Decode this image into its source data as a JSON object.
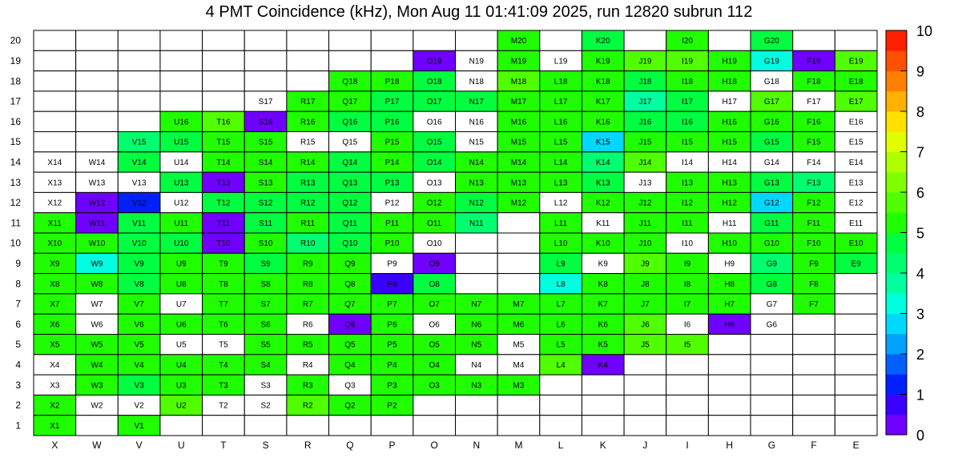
{
  "chart_data": {
    "type": "heatmap",
    "title": "4 PMT Coincidence (kHz), Mon Aug 11 01:41:09 2025, run 12820 subrun 112",
    "x_categories": [
      "X",
      "W",
      "V",
      "U",
      "T",
      "S",
      "R",
      "Q",
      "P",
      "O",
      "N",
      "M",
      "L",
      "K",
      "J",
      "I",
      "H",
      "G",
      "F",
      "E"
    ],
    "y_categories": [
      "1",
      "2",
      "3",
      "4",
      "5",
      "6",
      "7",
      "8",
      "9",
      "10",
      "11",
      "12",
      "13",
      "14",
      "15",
      "16",
      "17",
      "18",
      "19",
      "20"
    ],
    "zlim": [
      0,
      10
    ],
    "colorbar_ticks": [
      "0",
      "1",
      "2",
      "3",
      "4",
      "5",
      "6",
      "7",
      "8",
      "9",
      "10"
    ],
    "rows": [
      {
        "y": "20",
        "cells": [
          null,
          null,
          null,
          null,
          null,
          null,
          null,
          null,
          null,
          null,
          null,
          5.4,
          null,
          4.5,
          null,
          5.4,
          null,
          4.6,
          null,
          null
        ]
      },
      {
        "y": "19",
        "cells": [
          null,
          null,
          null,
          null,
          null,
          null,
          null,
          null,
          null,
          0.2,
          null,
          5.4,
          null,
          5.2,
          5.6,
          5.6,
          5.3,
          3.0,
          0.3,
          5.5
        ]
      },
      {
        "y": "18",
        "cells": [
          null,
          null,
          null,
          null,
          null,
          null,
          null,
          5.4,
          5.3,
          4.9,
          null,
          5.5,
          5.1,
          5.0,
          4.8,
          5.1,
          5.1,
          null,
          5.4,
          5.2
        ]
      },
      {
        "y": "17",
        "cells": [
          null,
          null,
          null,
          null,
          null,
          null,
          5.2,
          5.0,
          4.9,
          4.8,
          4.9,
          5.0,
          5.0,
          5.0,
          3.8,
          4.9,
          null,
          5.6,
          null,
          5.5
        ]
      },
      {
        "y": "16",
        "cells": [
          null,
          null,
          null,
          5.3,
          5.5,
          0.2,
          5.0,
          4.8,
          4.9,
          null,
          null,
          5.2,
          5.1,
          5.0,
          4.9,
          4.9,
          5.2,
          5.0,
          5.2,
          null
        ]
      },
      {
        "y": "15",
        "cells": [
          null,
          null,
          4.0,
          4.8,
          5.2,
          5.1,
          null,
          null,
          5.0,
          4.8,
          null,
          5.3,
          5.1,
          2.8,
          5.2,
          5.2,
          5.0,
          4.9,
          5.1,
          null
        ]
      },
      {
        "y": "14",
        "cells": [
          null,
          null,
          4.8,
          null,
          5.3,
          5.1,
          5.0,
          4.5,
          5.1,
          4.8,
          5.3,
          5.3,
          5.1,
          4.2,
          5.6,
          null,
          null,
          null,
          null,
          null
        ]
      },
      {
        "y": "13",
        "cells": [
          null,
          null,
          null,
          4.8,
          0.3,
          5.1,
          4.9,
          4.7,
          4.9,
          null,
          5.1,
          5.0,
          5.0,
          4.9,
          null,
          5.0,
          5.1,
          4.8,
          4.4,
          null
        ]
      },
      {
        "y": "12",
        "cells": [
          null,
          0.2,
          1.2,
          null,
          4.9,
          4.8,
          4.9,
          4.7,
          null,
          5.0,
          4.9,
          5.1,
          null,
          5.1,
          5.0,
          5.0,
          5.1,
          2.7,
          5.4,
          null
        ]
      },
      {
        "y": "11",
        "cells": [
          5.3,
          0.1,
          4.9,
          5.0,
          0.3,
          4.9,
          5.1,
          4.9,
          5.2,
          5.0,
          4.2,
          null,
          5.1,
          null,
          5.4,
          5.3,
          null,
          4.9,
          5.4,
          null
        ]
      },
      {
        "y": "10",
        "cells": [
          5.1,
          5.1,
          4.8,
          4.9,
          0.3,
          5.1,
          4.4,
          4.8,
          5.2,
          null,
          null,
          null,
          5.3,
          5.0,
          5.2,
          null,
          5.2,
          5.1,
          5.3,
          5.2
        ]
      },
      {
        "y": "9",
        "cells": [
          5.2,
          3.4,
          4.8,
          5.2,
          5.3,
          4.5,
          5.0,
          5.1,
          null,
          0.2,
          null,
          null,
          4.6,
          null,
          5.5,
          5.4,
          null,
          4.2,
          5.3,
          4.9
        ]
      },
      {
        "y": "8",
        "cells": [
          5.3,
          5.0,
          4.9,
          5.1,
          5.1,
          5.1,
          5.1,
          5.1,
          0.7,
          4.7,
          null,
          null,
          3.3,
          5.1,
          5.3,
          5.2,
          5.0,
          4.9,
          5.3,
          null
        ]
      },
      {
        "y": "7",
        "cells": [
          5.2,
          null,
          5.1,
          null,
          5.3,
          5.1,
          5.1,
          5.2,
          5.3,
          5.0,
          5.2,
          5.2,
          5.3,
          5.2,
          5.3,
          5.2,
          5.0,
          null,
          5.3,
          null
        ]
      },
      {
        "y": "6",
        "cells": [
          5.3,
          null,
          5.2,
          5.1,
          5.3,
          5.3,
          null,
          0.2,
          5.3,
          null,
          5.1,
          5.2,
          5.3,
          5.1,
          5.5,
          null,
          0.2,
          null,
          null,
          null
        ]
      },
      {
        "y": "5",
        "cells": [
          5.1,
          5.3,
          5.1,
          null,
          null,
          5.3,
          5.1,
          5.2,
          5.3,
          5.2,
          5.1,
          null,
          5.3,
          5.1,
          5.6,
          5.7,
          null,
          null,
          null,
          null
        ]
      },
      {
        "y": "4",
        "cells": [
          null,
          5.3,
          5.3,
          5.3,
          5.4,
          5.3,
          null,
          5.3,
          5.3,
          5.3,
          null,
          null,
          5.6,
          0.2,
          null,
          null,
          null,
          null,
          null,
          null
        ]
      },
      {
        "y": "3",
        "cells": [
          null,
          5.1,
          4.9,
          5.0,
          5.1,
          null,
          5.1,
          null,
          5.1,
          5.3,
          5.3,
          5.2,
          null,
          null,
          null,
          null,
          null,
          null,
          null,
          null
        ]
      },
      {
        "y": "2",
        "cells": [
          5.2,
          null,
          null,
          5.8,
          null,
          null,
          5.5,
          5.3,
          5.4,
          null,
          null,
          null,
          null,
          null,
          null,
          null,
          null,
          null,
          null,
          null
        ]
      },
      {
        "y": "1",
        "cells": [
          5.3,
          null,
          5.3,
          null,
          null,
          null,
          null,
          null,
          null,
          null,
          null,
          null,
          null,
          null,
          null,
          null,
          null,
          null,
          null,
          null
        ]
      }
    ],
    "labels": [
      {
        "y": "20",
        "cells": [
          "",
          "",
          "",
          "",
          "",
          "",
          "",
          "",
          "",
          "",
          "",
          "M20",
          "",
          "K20",
          "",
          "I20",
          "",
          "G20",
          "",
          ""
        ]
      },
      {
        "y": "19",
        "cells": [
          "",
          "",
          "",
          "",
          "",
          "",
          "",
          "",
          "",
          "O19",
          "N19",
          "M19",
          "L19",
          "K19",
          "J19",
          "I19",
          "H19",
          "G19",
          "F19",
          "E19"
        ]
      },
      {
        "y": "18",
        "cells": [
          "",
          "",
          "",
          "",
          "",
          "",
          "",
          "Q18",
          "P18",
          "O18",
          "N18",
          "M18",
          "L18",
          "K18",
          "J18",
          "I18",
          "H18",
          "G18",
          "F18",
          "E18"
        ]
      },
      {
        "y": "17",
        "cells": [
          "",
          "",
          "",
          "",
          "",
          "S17",
          "R17",
          "Q17",
          "P17",
          "O17",
          "N17",
          "M17",
          "L17",
          "K17",
          "J17",
          "I17",
          "H17",
          "G17",
          "F17",
          "E17"
        ]
      },
      {
        "y": "16",
        "cells": [
          "",
          "",
          "",
          "U16",
          "T16",
          "S16",
          "R16",
          "Q16",
          "P16",
          "O16",
          "N16",
          "M16",
          "L16",
          "K16",
          "J16",
          "I16",
          "H16",
          "G16",
          "F16",
          "E16"
        ]
      },
      {
        "y": "15",
        "cells": [
          "",
          "",
          "V15",
          "U15",
          "T15",
          "S15",
          "R15",
          "Q15",
          "P15",
          "O15",
          "N15",
          "M15",
          "L15",
          "K15",
          "J15",
          "I15",
          "H15",
          "G15",
          "F15",
          "E15"
        ]
      },
      {
        "y": "14",
        "cells": [
          "X14",
          "W14",
          "V14",
          "U14",
          "T14",
          "S14",
          "R14",
          "Q14",
          "P14",
          "O14",
          "N14",
          "M14",
          "L14",
          "K14",
          "J14",
          "I14",
          "H14",
          "G14",
          "F14",
          "E14"
        ]
      },
      {
        "y": "13",
        "cells": [
          "X13",
          "W13",
          "V13",
          "U13",
          "T13",
          "S13",
          "R13",
          "Q13",
          "P13",
          "O13",
          "N13",
          "M13",
          "L13",
          "K13",
          "J13",
          "I13",
          "H13",
          "G13",
          "F13",
          "E13"
        ]
      },
      {
        "y": "12",
        "cells": [
          "X12",
          "W12",
          "V12",
          "U12",
          "T12",
          "S12",
          "R12",
          "Q12",
          "P12",
          "O12",
          "N12",
          "M12",
          "L12",
          "K12",
          "J12",
          "I12",
          "H12",
          "G12",
          "F12",
          "E12"
        ]
      },
      {
        "y": "11",
        "cells": [
          "X11",
          "W11",
          "V11",
          "U11",
          "T11",
          "S11",
          "R11",
          "Q11",
          "P11",
          "O11",
          "N11",
          "",
          "L11",
          "K11",
          "J11",
          "I11",
          "H11",
          "G11",
          "F11",
          "E11"
        ]
      },
      {
        "y": "10",
        "cells": [
          "X10",
          "W10",
          "V10",
          "U10",
          "T10",
          "S10",
          "R10",
          "Q10",
          "P10",
          "O10",
          "",
          "",
          "L10",
          "K10",
          "J10",
          "I10",
          "H10",
          "G10",
          "F10",
          "E10"
        ]
      },
      {
        "y": "9",
        "cells": [
          "X9",
          "W9",
          "V9",
          "U9",
          "T9",
          "S9",
          "R9",
          "Q9",
          "P9",
          "O9",
          "",
          "",
          "L9",
          "K9",
          "J9",
          "I9",
          "H9",
          "G9",
          "F9",
          "E9"
        ]
      },
      {
        "y": "8",
        "cells": [
          "X8",
          "W8",
          "V8",
          "U8",
          "T8",
          "S8",
          "R8",
          "Q8",
          "P8",
          "O8",
          "",
          "",
          "L8",
          "K8",
          "J8",
          "I8",
          "H8",
          "G8",
          "F8",
          ""
        ]
      },
      {
        "y": "7",
        "cells": [
          "X7",
          "W7",
          "V7",
          "U7",
          "T7",
          "S7",
          "R7",
          "Q7",
          "P7",
          "O7",
          "N7",
          "M7",
          "L7",
          "K7",
          "J7",
          "I7",
          "H7",
          "G7",
          "F7",
          ""
        ]
      },
      {
        "y": "6",
        "cells": [
          "X6",
          "W6",
          "V6",
          "U6",
          "T6",
          "S6",
          "R6",
          "Q6",
          "P6",
          "O6",
          "N6",
          "M6",
          "L6",
          "K6",
          "J6",
          "I6",
          "H6",
          "G6",
          "",
          ""
        ]
      },
      {
        "y": "5",
        "cells": [
          "X5",
          "W5",
          "V5",
          "U5",
          "T5",
          "S5",
          "R5",
          "Q5",
          "P5",
          "O5",
          "N5",
          "M5",
          "L5",
          "K5",
          "J5",
          "I5",
          "",
          "",
          "",
          ""
        ]
      },
      {
        "y": "4",
        "cells": [
          "X4",
          "W4",
          "V4",
          "U4",
          "T4",
          "S4",
          "R4",
          "Q4",
          "P4",
          "O4",
          "N4",
          "M4",
          "L4",
          "K4",
          "",
          "",
          "",
          "",
          "",
          ""
        ]
      },
      {
        "y": "3",
        "cells": [
          "X3",
          "W3",
          "V3",
          "U3",
          "T3",
          "S3",
          "R3",
          "Q3",
          "P3",
          "O3",
          "N3",
          "M3",
          "",
          "",
          "",
          "",
          "",
          "",
          "",
          ""
        ]
      },
      {
        "y": "2",
        "cells": [
          "X2",
          "W2",
          "V2",
          "U2",
          "T2",
          "S2",
          "R2",
          "Q2",
          "P2",
          "",
          "",
          "",
          "",
          "",
          "",
          "",
          "",
          "",
          "",
          ""
        ]
      },
      {
        "y": "1",
        "cells": [
          "X1",
          "",
          "V1",
          "",
          "",
          "",
          "",
          "",
          "",
          "",
          "",
          "",
          "",
          "",
          "",
          "",
          "",
          "",
          "",
          ""
        ]
      }
    ],
    "colors": {
      "palette": [
        "#7000ff",
        "#3a00ff",
        "#0020ff",
        "#0060ff",
        "#00a0ff",
        "#00d8ff",
        "#00ffe0",
        "#00ffa0",
        "#00ff70",
        "#00ff40",
        "#20ff00",
        "#50ff00",
        "#80ff00",
        "#b0ff00",
        "#e0ff00",
        "#ffe000",
        "#ffb000",
        "#ff8000",
        "#ff5000",
        "#ff2000"
      ],
      "grid": "#000000",
      "empty": "#ffffff"
    }
  }
}
